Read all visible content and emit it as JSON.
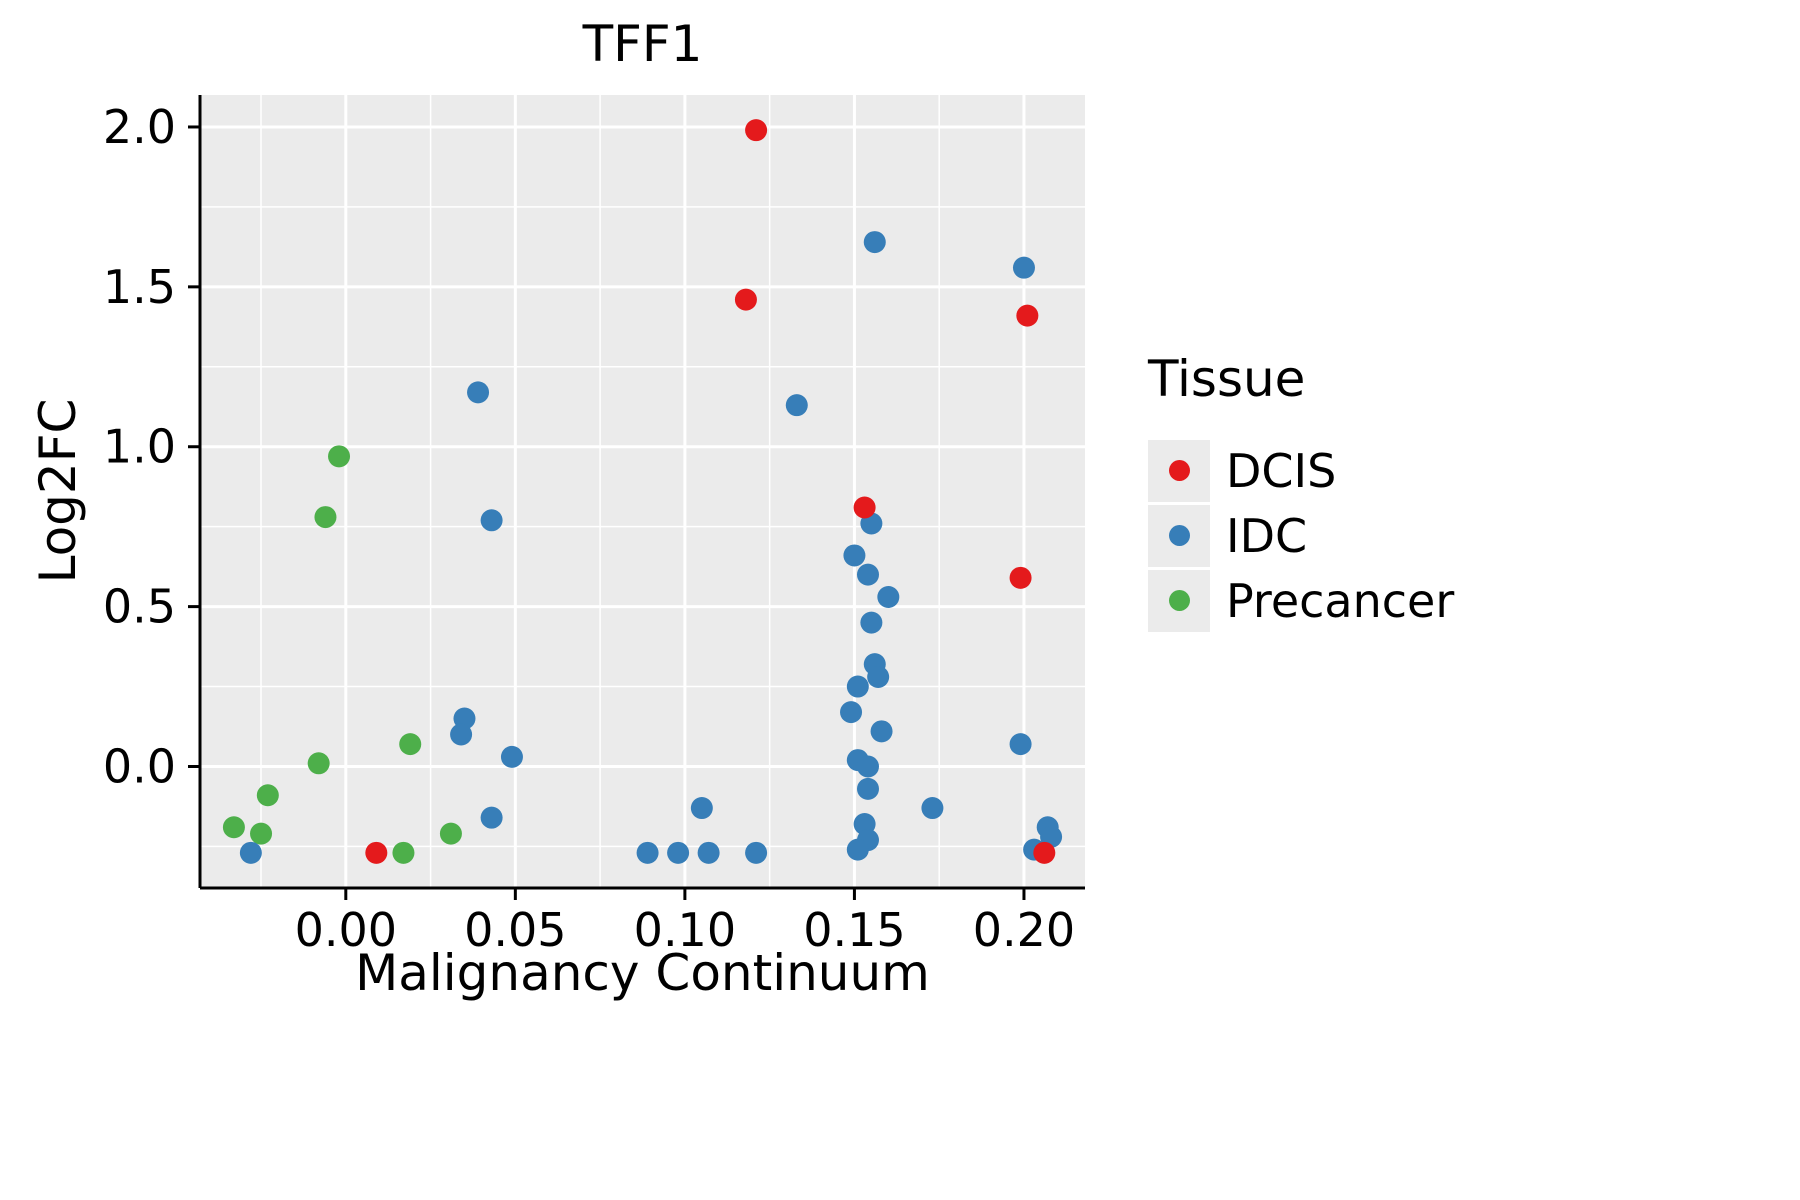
{
  "chart_data": {
    "type": "scatter",
    "title": "TFF1",
    "xlabel": "Malignancy Continuum",
    "ylabel": "Log2FC",
    "xlim": [
      -0.043,
      0.218
    ],
    "ylim": [
      -0.38,
      2.1
    ],
    "grid": true,
    "panel_background": "#EBEBEB",
    "grid_color": "#FFFFFF",
    "axis_color": "#000000",
    "point_radius": 11,
    "xticks": {
      "values": [
        0.0,
        0.05,
        0.1,
        0.15,
        0.2
      ],
      "labels": [
        "0.00",
        "0.05",
        "0.10",
        "0.15",
        "0.20"
      ]
    },
    "yticks": {
      "values": [
        0.0,
        0.5,
        1.0,
        1.5,
        2.0
      ],
      "labels": [
        "0.0",
        "0.5",
        "1.0",
        "1.5",
        "2.0"
      ]
    },
    "x_minor_ticks": [
      -0.025,
      0.025,
      0.075,
      0.125,
      0.175
    ],
    "y_minor_ticks": [
      -0.25,
      0.25,
      0.75,
      1.25,
      1.75
    ],
    "legend": {
      "title": "Tissue",
      "position": "right"
    },
    "series": [
      {
        "name": "DCIS",
        "color": "#E41A1C",
        "points": [
          [
            0.121,
            1.99
          ],
          [
            0.118,
            1.46
          ],
          [
            0.201,
            1.41
          ],
          [
            0.153,
            0.81
          ],
          [
            0.199,
            0.59
          ],
          [
            0.009,
            -0.27
          ],
          [
            0.206,
            -0.27
          ]
        ]
      },
      {
        "name": "IDC",
        "color": "#377EB8",
        "points": [
          [
            0.156,
            1.64
          ],
          [
            0.2,
            1.56
          ],
          [
            0.039,
            1.17
          ],
          [
            0.133,
            1.13
          ],
          [
            0.043,
            0.77
          ],
          [
            0.155,
            0.76
          ],
          [
            0.15,
            0.66
          ],
          [
            0.154,
            0.6
          ],
          [
            0.16,
            0.53
          ],
          [
            0.155,
            0.45
          ],
          [
            0.156,
            0.32
          ],
          [
            0.157,
            0.28
          ],
          [
            0.151,
            0.25
          ],
          [
            0.149,
            0.17
          ],
          [
            0.035,
            0.15
          ],
          [
            0.158,
            0.11
          ],
          [
            0.034,
            0.1
          ],
          [
            0.199,
            0.07
          ],
          [
            0.049,
            0.03
          ],
          [
            0.151,
            0.02
          ],
          [
            0.154,
            0.0
          ],
          [
            0.154,
            -0.07
          ],
          [
            0.105,
            -0.13
          ],
          [
            0.173,
            -0.13
          ],
          [
            0.043,
            -0.16
          ],
          [
            0.153,
            -0.18
          ],
          [
            0.207,
            -0.19
          ],
          [
            0.208,
            -0.22
          ],
          [
            0.154,
            -0.23
          ],
          [
            0.151,
            -0.26
          ],
          [
            -0.028,
            -0.27
          ],
          [
            0.089,
            -0.27
          ],
          [
            0.098,
            -0.27
          ],
          [
            0.107,
            -0.27
          ],
          [
            0.121,
            -0.27
          ],
          [
            0.203,
            -0.26
          ]
        ]
      },
      {
        "name": "Precancer",
        "color": "#4DAF4A",
        "points": [
          [
            -0.002,
            0.97
          ],
          [
            -0.006,
            0.78
          ],
          [
            0.019,
            0.07
          ],
          [
            -0.008,
            0.01
          ],
          [
            -0.023,
            -0.09
          ],
          [
            -0.033,
            -0.19
          ],
          [
            -0.025,
            -0.21
          ],
          [
            0.031,
            -0.21
          ],
          [
            0.017,
            -0.27
          ]
        ]
      }
    ]
  }
}
